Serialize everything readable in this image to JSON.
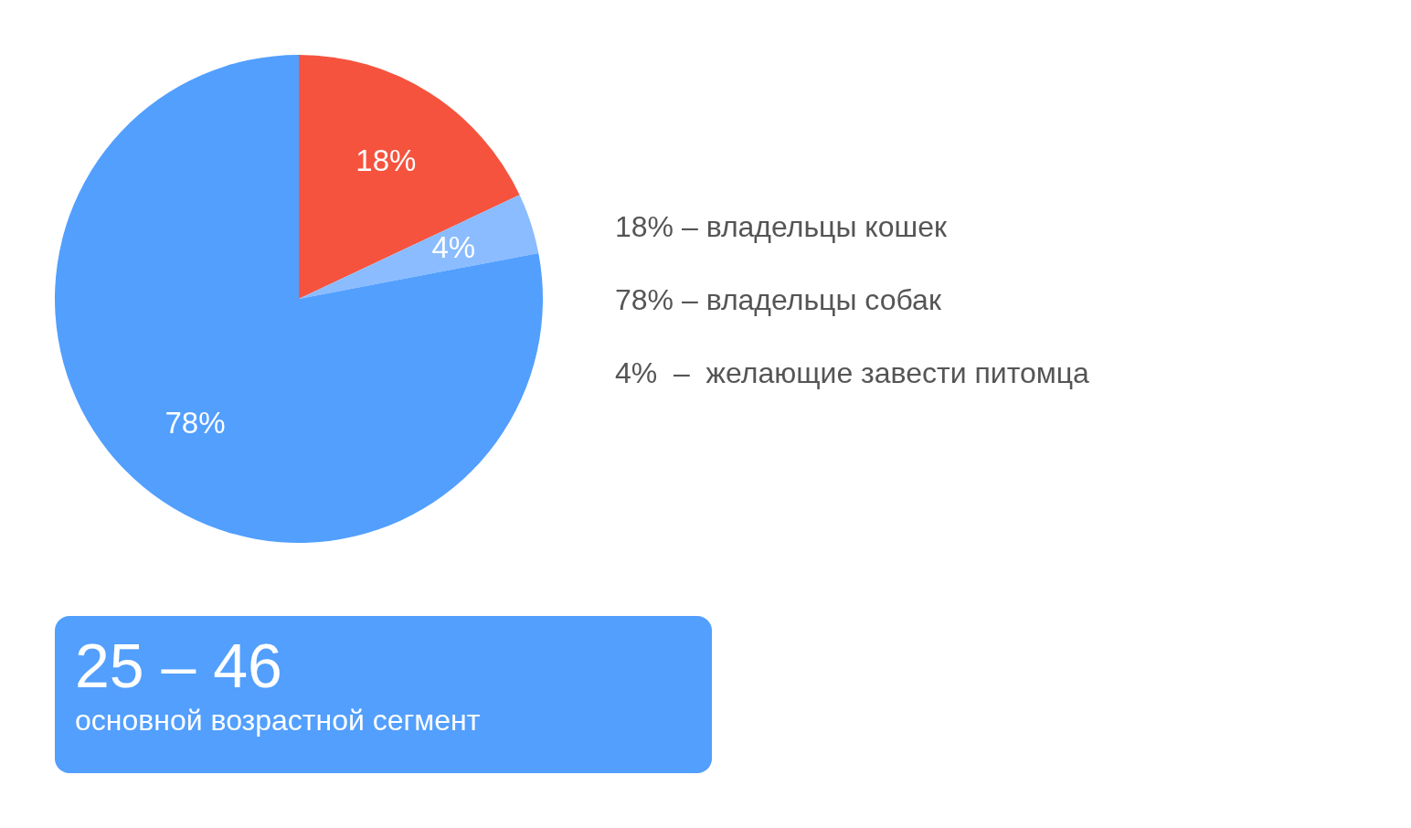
{
  "chart_data": {
    "type": "pie",
    "categories": [
      null,
      null,
      null
    ],
    "values": [
      18,
      4,
      78
    ],
    "value_labels": [
      "18%",
      "4%",
      "78%"
    ],
    "colors": [
      "#f6533e",
      "#8abcff",
      "#529ffe"
    ],
    "annotations": [
      "18% – владельцы кошек",
      "78% – владельцы собак",
      "4%  –  желающие завести питомца",
      "25 – 46",
      "основной возрастной сегмент"
    ]
  }
}
